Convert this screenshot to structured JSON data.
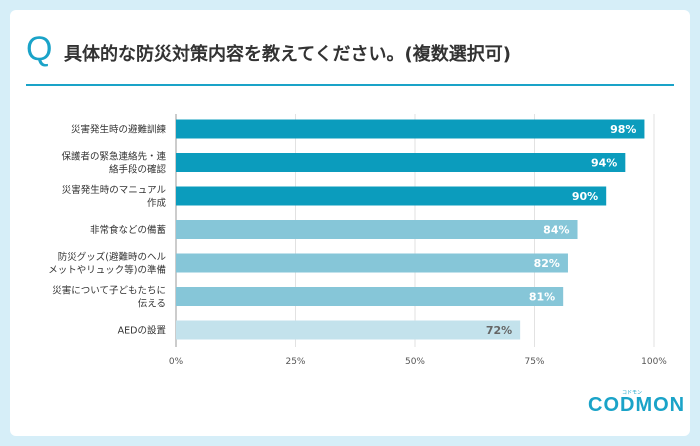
{
  "header": {
    "q_mark": "Q",
    "title": "具体的な防災対策内容を教えてください。(複数選択可)"
  },
  "logo": {
    "text": "CODMON",
    "ruby": "コドモン"
  },
  "colors": {
    "accent": "#1aa3c8",
    "bar_dark": "#0b9cbd",
    "bar_mid": "#86c6d8",
    "bar_light": "#c3e2ec"
  },
  "chart_data": {
    "type": "bar",
    "orientation": "horizontal",
    "categories": [
      [
        "災害発生時の避難訓練"
      ],
      [
        "保護者の緊急連絡先・連",
        "絡手段の確認"
      ],
      [
        "災害発生時のマニュアル",
        "作成"
      ],
      [
        "非常食などの備蓄"
      ],
      [
        "防災グッズ(避難時のヘル",
        "メットやリュック等)の準備"
      ],
      [
        "災害について子どもたちに",
        "伝える"
      ],
      [
        "AEDの設置"
      ]
    ],
    "values": [
      98,
      94,
      90,
      84,
      82,
      81,
      72
    ],
    "value_labels": [
      "98%",
      "94%",
      "90%",
      "84%",
      "82%",
      "81%",
      "72%"
    ],
    "bar_colors": [
      "#0b9cbd",
      "#0b9cbd",
      "#0b9cbd",
      "#86c6d8",
      "#86c6d8",
      "#86c6d8",
      "#c3e2ec"
    ],
    "value_label_colors": [
      "#ffffff",
      "#ffffff",
      "#ffffff",
      "#ffffff",
      "#ffffff",
      "#ffffff",
      "#666666"
    ],
    "xlim": [
      0,
      100
    ],
    "xticks": [
      0,
      25,
      50,
      75,
      100
    ],
    "xtick_labels": [
      "0%",
      "25%",
      "50%",
      "75%",
      "100%"
    ],
    "grid": true
  }
}
